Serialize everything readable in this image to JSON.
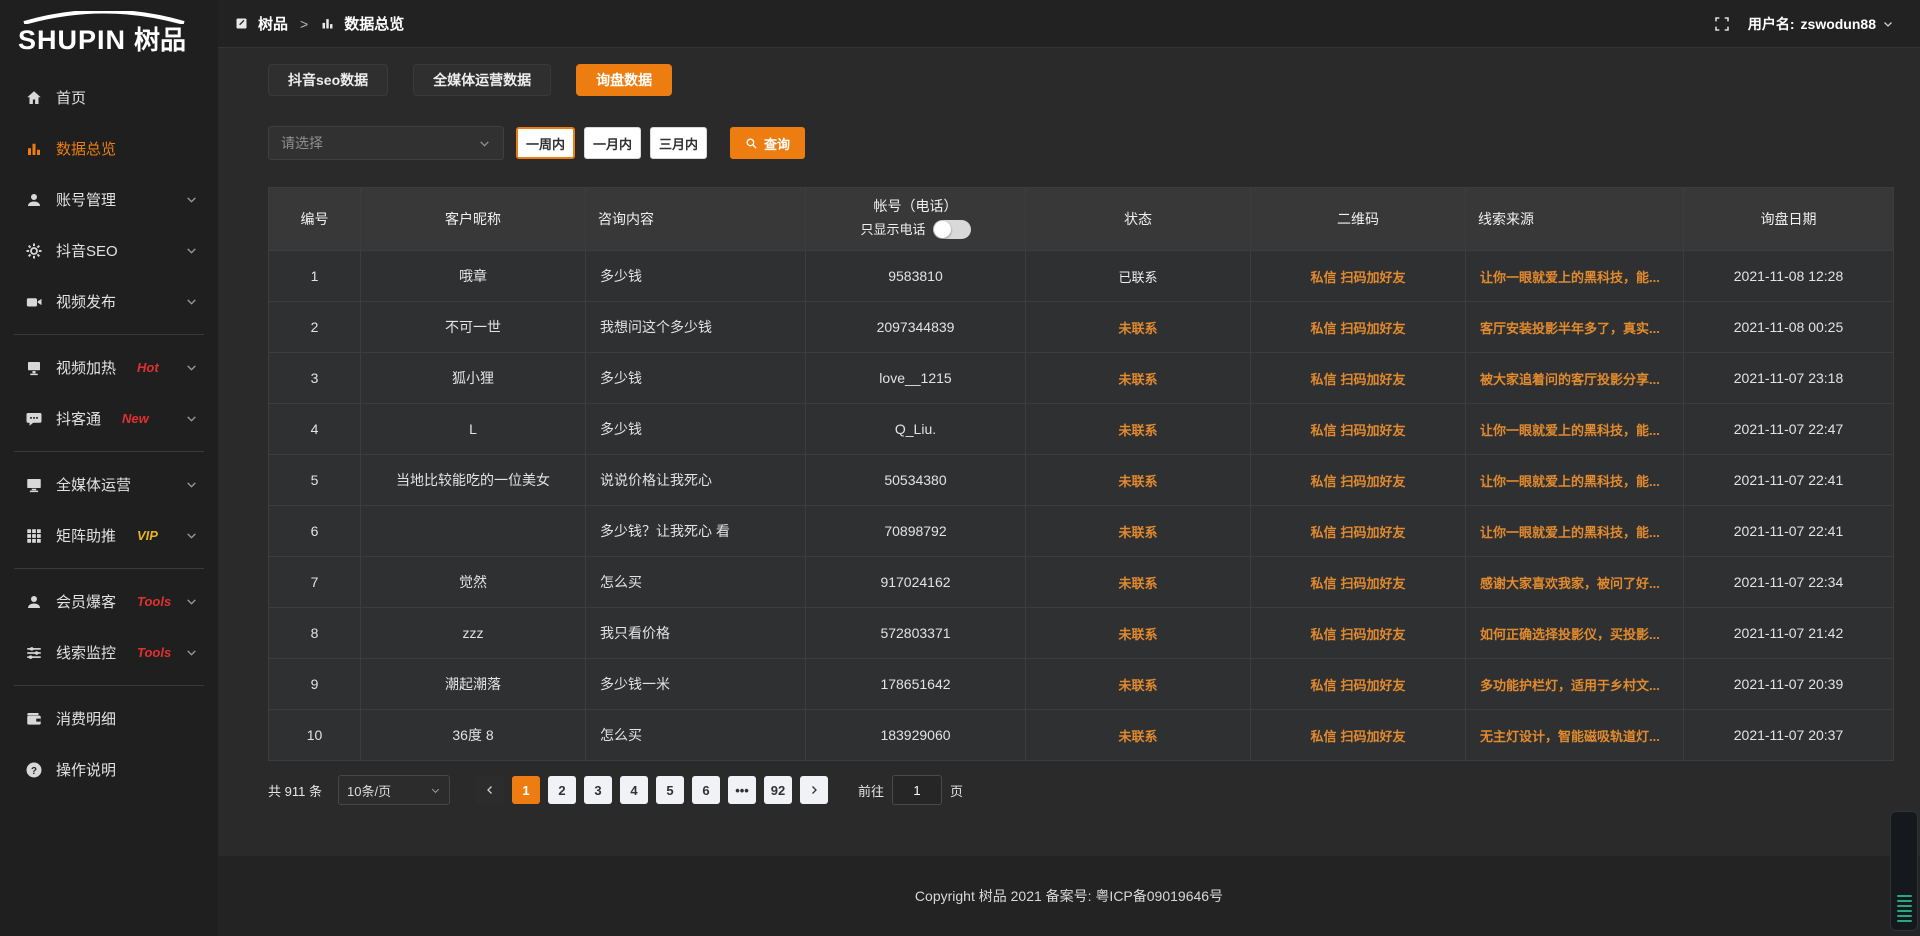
{
  "colors": {
    "accent": "#ed7d11",
    "link": "#e18a2e",
    "badge_red": "#e03131",
    "badge_vip": "#e6b422"
  },
  "brand": {
    "name_en": "SHUPIN",
    "name_cn": "树品"
  },
  "topbar": {
    "breadcrumb": [
      {
        "label": "树品",
        "icon": "doc-icon"
      },
      {
        "label": "数据总览",
        "icon": "bar-chart-icon"
      }
    ],
    "separator": ">",
    "username_label": "用户名:",
    "username": "zswodun88"
  },
  "sidebar": {
    "items": [
      {
        "id": "home",
        "label": "首页",
        "icon": "home-icon"
      },
      {
        "id": "data-overview",
        "label": "数据总览",
        "icon": "bar-chart-icon",
        "active": true
      },
      {
        "id": "account-management",
        "label": "账号管理",
        "icon": "user-icon",
        "chevron": true
      },
      {
        "id": "douyin-seo",
        "label": "抖音SEO",
        "icon": "gear-icon",
        "chevron": true
      },
      {
        "id": "video-publish",
        "label": "视频发布",
        "icon": "video-camera-icon",
        "chevron": true
      },
      {
        "divider": true
      },
      {
        "id": "video-heating",
        "label": "视频加热",
        "icon": "monitor-icon",
        "badge": "Hot",
        "badge_color": "#e03131",
        "chevron": true
      },
      {
        "id": "douketong",
        "label": "抖客通",
        "icon": "chat-icon",
        "badge": "New",
        "badge_color": "#e03131",
        "chevron": true
      },
      {
        "divider": true
      },
      {
        "id": "all-media-operation",
        "label": "全媒体运营",
        "icon": "display-icon",
        "chevron": true
      },
      {
        "id": "matrix-boost",
        "label": "矩阵助推",
        "icon": "grid-icon",
        "badge": "VIP",
        "badge_color": "#e6b422",
        "chevron": true
      },
      {
        "divider": true
      },
      {
        "id": "member-baoke",
        "label": "会员爆客",
        "icon": "user-solid-icon",
        "badge": "Tools",
        "badge_color": "#e03131",
        "chevron": true
      },
      {
        "id": "clue-monitor",
        "label": "线索监控",
        "icon": "sliders-icon",
        "badge": "Tools",
        "badge_color": "#e03131",
        "chevron": true
      },
      {
        "divider": true
      },
      {
        "id": "consumption-details",
        "label": "消费明细",
        "icon": "wallet-icon"
      },
      {
        "id": "operation-guide",
        "label": "操作说明",
        "icon": "question-icon"
      }
    ]
  },
  "tabs": [
    {
      "id": "douyin-seo-data",
      "label": "抖音seo数据"
    },
    {
      "id": "media-operation-data",
      "label": "全媒体运营数据"
    },
    {
      "id": "inquiry-data",
      "label": "询盘数据",
      "active": true
    }
  ],
  "filters": {
    "select_placeholder": "请选择",
    "ranges": [
      {
        "label": "一周内",
        "active": true
      },
      {
        "label": "一月内"
      },
      {
        "label": "三月内"
      }
    ],
    "search_label": "查询"
  },
  "table": {
    "columns": [
      "编号",
      "客户昵称",
      "咨询内容",
      "帐号（电话）",
      "状态",
      "二维码",
      "线索来源",
      "询盘日期"
    ],
    "phone_toggle_label": "只显示电话",
    "rows": [
      {
        "no": "1",
        "nickname": "哦章",
        "content": "多少钱",
        "account": "9583810",
        "status": "已联系",
        "status_type": "contacted",
        "qr": [
          "私信",
          "扫码加好友"
        ],
        "source": "让你一眼就爱上的黑科技，能...",
        "date": "2021-11-08 12:28"
      },
      {
        "no": "2",
        "nickname": "不可一世",
        "content": "我想问这个多少钱",
        "account": "2097344839",
        "status": "未联系",
        "status_type": "pending",
        "qr": [
          "私信",
          "扫码加好友"
        ],
        "source": "客厅安装投影半年多了，真实...",
        "date": "2021-11-08 00:25"
      },
      {
        "no": "3",
        "nickname": "狐小狸",
        "content": "多少钱",
        "account": "love__1215",
        "status": "未联系",
        "status_type": "pending",
        "qr": [
          "私信",
          "扫码加好友"
        ],
        "source": "被大家追着问的客厅投影分享...",
        "date": "2021-11-07 23:18"
      },
      {
        "no": "4",
        "nickname": "L",
        "content": "多少钱",
        "account": "Q_Liu.",
        "status": "未联系",
        "status_type": "pending",
        "qr": [
          "私信",
          "扫码加好友"
        ],
        "source": "让你一眼就爱上的黑科技，能...",
        "date": "2021-11-07 22:47"
      },
      {
        "no": "5",
        "nickname": "当地比较能吃的一位美女",
        "content": "说说价格让我死心",
        "account": "50534380",
        "status": "未联系",
        "status_type": "pending",
        "qr": [
          "私信",
          "扫码加好友"
        ],
        "source": "让你一眼就爱上的黑科技，能...",
        "date": "2021-11-07 22:41"
      },
      {
        "no": "6",
        "nickname": "",
        "content": "多少钱？让我死心 看",
        "account": "70898792",
        "status": "未联系",
        "status_type": "pending",
        "qr": [
          "私信",
          "扫码加好友"
        ],
        "source": "让你一眼就爱上的黑科技，能...",
        "date": "2021-11-07 22:41"
      },
      {
        "no": "7",
        "nickname": "觉然",
        "content": "怎么买",
        "account": "917024162",
        "status": "未联系",
        "status_type": "pending",
        "qr": [
          "私信",
          "扫码加好友"
        ],
        "source": "感谢大家喜欢我家，被问了好...",
        "date": "2021-11-07 22:34"
      },
      {
        "no": "8",
        "nickname": "zzz",
        "content": "我只看价格",
        "account": "572803371",
        "status": "未联系",
        "status_type": "pending",
        "qr": [
          "私信",
          "扫码加好友"
        ],
        "source": "如何正确选择投影仪，买投影...",
        "date": "2021-11-07 21:42"
      },
      {
        "no": "9",
        "nickname": "潮起潮落",
        "content": "多少钱一米",
        "account": "178651642",
        "status": "未联系",
        "status_type": "pending",
        "qr": [
          "私信",
          "扫码加好友"
        ],
        "source": "多功能护栏灯，适用于乡村文...",
        "date": "2021-11-07 20:39"
      },
      {
        "no": "10",
        "nickname": "36度 8",
        "content": "怎么买",
        "account": "183929060",
        "status": "未联系",
        "status_type": "pending",
        "qr": [
          "私信",
          "扫码加好友"
        ],
        "source": "无主灯设计，智能磁吸轨道灯...",
        "date": "2021-11-07 20:37"
      }
    ]
  },
  "pagination": {
    "total_prefix": "共",
    "total": "911",
    "total_suffix": "条",
    "page_size": "10条/页",
    "pages": [
      "1",
      "2",
      "3",
      "4",
      "5",
      "6",
      "...",
      "92"
    ],
    "active_page": "1",
    "goto_label": "前往",
    "goto_value": "1",
    "goto_suffix": "页"
  },
  "footer": {
    "copyright": "Copyright 树品 2021 备案号: 粤ICP备09019646号"
  }
}
